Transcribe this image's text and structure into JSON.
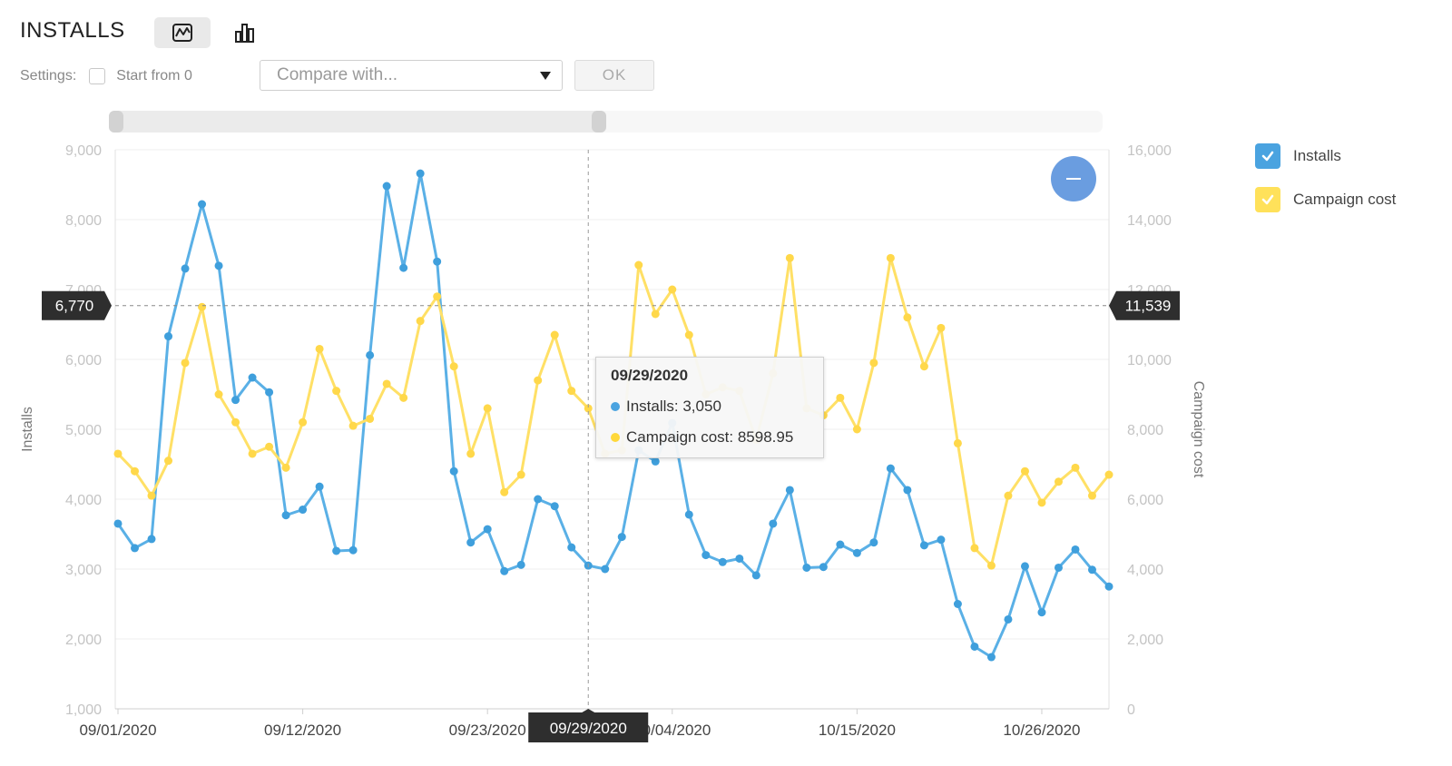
{
  "title": "INSTALLS",
  "view_buttons": [
    {
      "icon": "line-chart-icon",
      "active": true
    },
    {
      "icon": "bar-chart-icon",
      "active": false
    }
  ],
  "settings": {
    "label": "Settings:",
    "start_from_zero_label": "Start from 0",
    "start_from_zero_checked": false,
    "compare_placeholder": "Compare with...",
    "ok_label": "OK"
  },
  "scrollbar": {
    "visible_fraction": 0.5
  },
  "zoom_button_icon": "minus-icon",
  "legend": [
    {
      "label": "Installs",
      "color": "#4aa3e0",
      "checked": true
    },
    {
      "label": "Campaign cost",
      "color": "#ffe15a",
      "checked": true
    }
  ],
  "crosshair": {
    "y_left_label": "6,770",
    "y_right_label": "11,539",
    "x_label": "09/29/2020"
  },
  "tooltip": {
    "date": "09/29/2020",
    "installs_text": "Installs: 3,050",
    "cost_text": "Campaign cost: 8598.95"
  },
  "chart_data": {
    "type": "line",
    "xlabel": "",
    "ylabel": "Installs",
    "y2label": "Campaign cost",
    "ylim": [
      1000,
      9000
    ],
    "y2lim": [
      0,
      16000
    ],
    "yticks": [
      "1,000",
      "2,000",
      "3,000",
      "4,000",
      "5,000",
      "6,000",
      "7,000",
      "8,000",
      "9,000"
    ],
    "y2ticks": [
      "0",
      "2,000",
      "4,000",
      "6,000",
      "8,000",
      "10,000",
      "12,000",
      "14,000",
      "16,000"
    ],
    "xticks": [
      "09/01/2020",
      "09/12/2020",
      "09/23/2020",
      "10/04/2020",
      "10/15/2020",
      "10/26/2020"
    ],
    "x_start": "09/01/2020",
    "grid": true,
    "series": [
      {
        "name": "Installs",
        "color": "#5ab0e6",
        "axis": "left",
        "values": [
          3650,
          3300,
          3430,
          6330,
          7300,
          8220,
          7340,
          5420,
          5740,
          5530,
          3770,
          3850,
          4180,
          3260,
          3270,
          6060,
          8480,
          7310,
          8660,
          7400,
          4400,
          3380,
          3570,
          2970,
          3060,
          4000,
          3900,
          3310,
          3050,
          3000,
          3460,
          4700,
          4540,
          5090,
          3780,
          3200,
          3100,
          3150,
          2910,
          3650,
          4130,
          3020,
          3030,
          3350,
          3230,
          3380,
          4440,
          4130,
          3340,
          3420,
          2500,
          1890,
          1740,
          2280,
          3040,
          2380,
          3020,
          3280,
          2990,
          2750
        ]
      },
      {
        "name": "Campaign cost",
        "color": "#ffe066",
        "axis": "right",
        "values": [
          7300,
          6800,
          6100,
          7100,
          9900,
          11500,
          9000,
          8200,
          7300,
          7500,
          6900,
          8200,
          10300,
          9100,
          8100,
          8300,
          9300,
          8900,
          11100,
          11800,
          9800,
          7300,
          8600,
          6200,
          6700,
          9400,
          10700,
          9100,
          8599,
          7300,
          7400,
          12700,
          11300,
          12000,
          10700,
          9000,
          9200,
          9100,
          7700,
          9600,
          12900,
          8600,
          8400,
          8900,
          8000,
          9900,
          12900,
          11200,
          9800,
          10900,
          7600,
          4600,
          4100,
          6100,
          6800,
          5900,
          6500,
          6900,
          6100,
          6700
        ]
      }
    ]
  }
}
